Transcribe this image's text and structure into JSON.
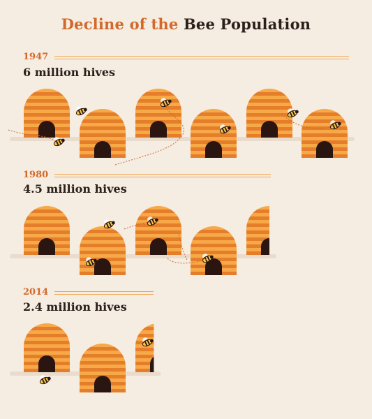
{
  "title": {
    "part1": "Decline of the",
    "part2": "Bee Population"
  },
  "chart_data": {
    "type": "bar",
    "title": "Decline of the Bee Population",
    "categories": [
      "1947",
      "1980",
      "2014"
    ],
    "values": [
      6,
      4.5,
      2.4
    ],
    "value_labels": [
      "6 million hives",
      "4.5 million hives",
      "2.4 million hives"
    ],
    "unit": "million hives",
    "units_per_icon": 1
  },
  "colors": {
    "accent": "#d2692a",
    "hive_light": "#f7a847",
    "hive_dark": "#e57e2b",
    "door": "#2a1511",
    "text": "#2b1f1a",
    "background": "#f5ece2"
  }
}
